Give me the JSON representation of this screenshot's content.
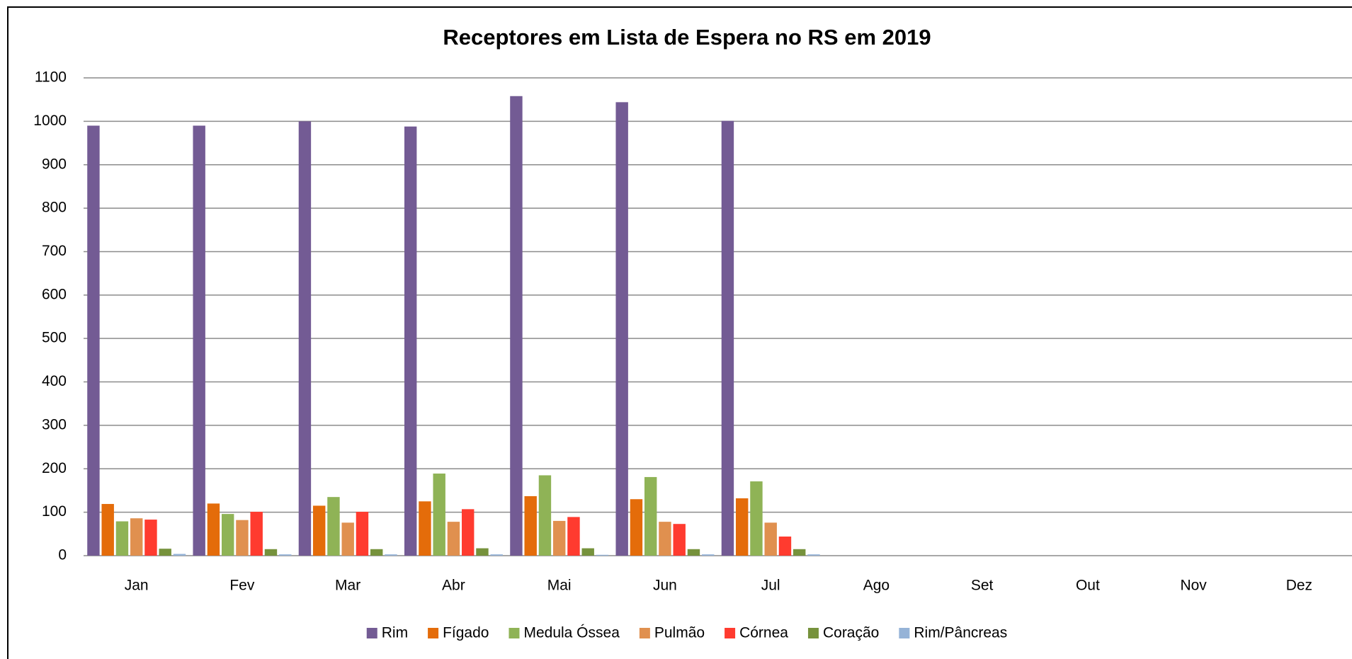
{
  "chart_data": {
    "type": "bar",
    "title": "Receptores em Lista de Espera no RS em 2019",
    "categories": [
      "Jan",
      "Fev",
      "Mar",
      "Abr",
      "Mai",
      "Jun",
      "Jul",
      "Ago",
      "Set",
      "Out",
      "Nov",
      "Dez"
    ],
    "series": [
      {
        "name": "Rim",
        "color": "#735b94",
        "values": [
          990,
          990,
          1000,
          988,
          1058,
          1044,
          1001,
          null,
          null,
          null,
          null,
          null
        ]
      },
      {
        "name": "Fígado",
        "color": "#e46c0a",
        "values": [
          119,
          120,
          115,
          125,
          137,
          130,
          132,
          null,
          null,
          null,
          null,
          null
        ]
      },
      {
        "name": "Medula Óssea",
        "color": "#8fb356",
        "values": [
          79,
          96,
          135,
          189,
          185,
          181,
          171,
          null,
          null,
          null,
          null,
          null
        ]
      },
      {
        "name": "Pulmão",
        "color": "#e0904f",
        "values": [
          86,
          82,
          76,
          78,
          80,
          78,
          76,
          null,
          null,
          null,
          null,
          null
        ]
      },
      {
        "name": "Córnea",
        "color": "#ff3b2f",
        "values": [
          83,
          101,
          101,
          107,
          89,
          73,
          44,
          null,
          null,
          null,
          null,
          null
        ]
      },
      {
        "name": "Coração",
        "color": "#76923c",
        "values": [
          16,
          15,
          15,
          17,
          17,
          15,
          15,
          null,
          null,
          null,
          null,
          null
        ]
      },
      {
        "name": "Rim/Pâncreas",
        "color": "#95b3d7",
        "values": [
          4,
          3,
          3,
          3,
          2,
          3,
          3,
          null,
          null,
          null,
          null,
          null
        ]
      }
    ],
    "ylim": [
      0,
      1100
    ],
    "yticks": [
      0,
      100,
      200,
      300,
      400,
      500,
      600,
      700,
      800,
      900,
      1000,
      1100
    ],
    "grid": true,
    "legend": "bottom"
  }
}
